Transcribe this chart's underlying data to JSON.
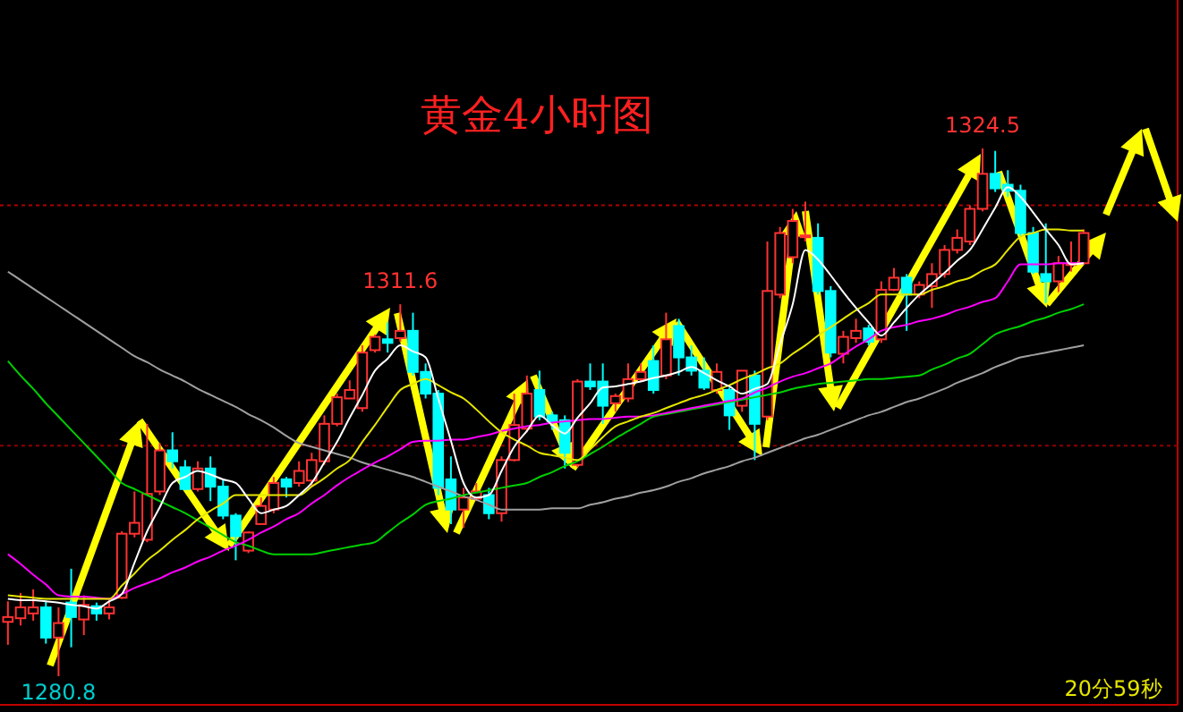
{
  "chart_data": {
    "type": "candlestick",
    "title": "黄金4小时图",
    "tick_labels": false,
    "categories": [
      null,
      null,
      null,
      null,
      null,
      null,
      null,
      null,
      null,
      null,
      null,
      null,
      null,
      null,
      null,
      null,
      null,
      null,
      null,
      null,
      null,
      null,
      null,
      null,
      null,
      null,
      null,
      null,
      null,
      null,
      null,
      null,
      null,
      null,
      null,
      null,
      null,
      null,
      null,
      null,
      null,
      null,
      null,
      null,
      null,
      null,
      null,
      null,
      null,
      null,
      null,
      null,
      null,
      null,
      null,
      null,
      null,
      null,
      null,
      null,
      null,
      null,
      null,
      null,
      null,
      null,
      null,
      null,
      null,
      null,
      null,
      null,
      null,
      null,
      null,
      null,
      null,
      null,
      null,
      null,
      null,
      null,
      null,
      null,
      null,
      null
    ],
    "ohlc": [
      [
        1285.3,
        1287.0,
        1283.4,
        1285.7
      ],
      [
        1285.6,
        1287.7,
        1285.0,
        1286.5
      ],
      [
        1286.0,
        1288.0,
        1285.4,
        1286.5
      ],
      [
        1286.5,
        1287.0,
        1283.5,
        1284.0
      ],
      [
        1284.0,
        1286.5,
        1280.8,
        1285.2
      ],
      [
        1286.9,
        1289.7,
        1283.2,
        1285.7
      ],
      [
        1285.5,
        1287.5,
        1284.2,
        1286.7
      ],
      [
        1286.6,
        1286.9,
        1285.4,
        1286.0
      ],
      [
        1286.0,
        1287.2,
        1285.5,
        1286.5
      ],
      [
        1287.3,
        1292.8,
        1287.2,
        1292.6
      ],
      [
        1292.6,
        1296.1,
        1292.3,
        1293.5
      ],
      [
        1292.1,
        1301.7,
        1291.9,
        1295.9
      ],
      [
        1296.1,
        1300.1,
        1295.8,
        1299.5
      ],
      [
        1299.5,
        1301.0,
        1298.0,
        1298.6
      ],
      [
        1298.1,
        1298.7,
        1296.2,
        1296.3
      ],
      [
        1296.3,
        1298.6,
        1296.1,
        1298.0
      ],
      [
        1298.0,
        1299.0,
        1295.3,
        1296.5
      ],
      [
        1296.5,
        1297.1,
        1293.8,
        1294.1
      ],
      [
        1294.1,
        1294.3,
        1290.4,
        1292.4
      ],
      [
        1291.2,
        1292.8,
        1291.0,
        1292.7
      ],
      [
        1293.4,
        1295.6,
        1293.4,
        1294.9
      ],
      [
        1294.6,
        1297.3,
        1294.3,
        1296.8
      ],
      [
        1297.1,
        1297.3,
        1295.6,
        1296.5
      ],
      [
        1296.8,
        1298.6,
        1296.5,
        1297.8
      ],
      [
        1297.0,
        1299.3,
        1296.5,
        1298.7
      ],
      [
        1298.6,
        1302.4,
        1298.3,
        1301.7
      ],
      [
        1301.7,
        1304.2,
        1301.5,
        1303.9
      ],
      [
        1303.8,
        1305.3,
        1303.8,
        1304.5
      ],
      [
        1303.0,
        1308.2,
        1302.7,
        1307.6
      ],
      [
        1307.8,
        1309.1,
        1307.6,
        1308.9
      ],
      [
        1308.7,
        1310.1,
        1307.6,
        1308.4
      ],
      [
        1308.8,
        1311.6,
        1308.5,
        1309.4
      ],
      [
        1309.4,
        1310.9,
        1305.7,
        1306.0
      ],
      [
        1306.0,
        1306.7,
        1303.8,
        1304.2
      ],
      [
        1304.2,
        1304.5,
        1295.8,
        1296.4
      ],
      [
        1297.1,
        1299.0,
        1293.4,
        1294.6
      ],
      [
        1294.6,
        1296.4,
        1293.1,
        1295.6
      ],
      [
        1295.5,
        1296.8,
        1295.3,
        1296.1
      ],
      [
        1295.8,
        1296.4,
        1293.8,
        1294.3
      ],
      [
        1294.3,
        1299.0,
        1293.6,
        1298.7
      ],
      [
        1298.7,
        1304.2,
        1298.6,
        1301.6
      ],
      [
        1301.3,
        1305.7,
        1301.0,
        1304.2
      ],
      [
        1304.5,
        1306.1,
        1302.0,
        1302.3
      ],
      [
        1302.4,
        1302.7,
        1301.2,
        1301.9
      ],
      [
        1302.0,
        1302.4,
        1298.0,
        1299.3
      ],
      [
        1298.3,
        1305.4,
        1298.1,
        1305.2
      ],
      [
        1305.2,
        1306.7,
        1304.5,
        1304.8
      ],
      [
        1305.2,
        1306.7,
        1301.7,
        1303.2
      ],
      [
        1303.4,
        1304.2,
        1302.7,
        1304.0
      ],
      [
        1303.8,
        1306.7,
        1303.5,
        1305.4
      ],
      [
        1305.4,
        1306.7,
        1305.2,
        1306.0
      ],
      [
        1306.9,
        1308.2,
        1304.2,
        1304.5
      ],
      [
        1305.7,
        1310.9,
        1305.4,
        1308.7
      ],
      [
        1309.8,
        1310.4,
        1305.7,
        1307.2
      ],
      [
        1307.2,
        1308.2,
        1305.7,
        1306.1
      ],
      [
        1306.1,
        1307.2,
        1304.5,
        1304.7
      ],
      [
        1304.5,
        1306.7,
        1304.2,
        1306.0
      ],
      [
        1304.5,
        1304.7,
        1301.2,
        1302.4
      ],
      [
        1303.2,
        1306.1,
        1302.7,
        1306.1
      ],
      [
        1305.7,
        1306.1,
        1298.7,
        1301.7
      ],
      [
        1302.3,
        1316.8,
        1302.0,
        1312.7
      ],
      [
        1312.4,
        1318.0,
        1312.1,
        1317.5
      ],
      [
        1315.5,
        1319.5,
        1315.0,
        1318.5
      ],
      [
        1317.2,
        1320.1,
        1316.8,
        1317.3
      ],
      [
        1317.1,
        1318.3,
        1312.4,
        1312.7
      ],
      [
        1312.7,
        1313.1,
        1307.2,
        1307.6
      ],
      [
        1307.5,
        1309.4,
        1306.7,
        1308.9
      ],
      [
        1308.8,
        1310.4,
        1308.4,
        1309.4
      ],
      [
        1309.6,
        1309.9,
        1308.2,
        1308.5
      ],
      [
        1308.7,
        1313.5,
        1308.4,
        1312.8
      ],
      [
        1312.8,
        1314.6,
        1312.7,
        1313.8
      ],
      [
        1313.8,
        1314.1,
        1309.4,
        1312.4
      ],
      [
        1312.4,
        1313.5,
        1312.1,
        1313.2
      ],
      [
        1313.1,
        1315.0,
        1311.3,
        1314.1
      ],
      [
        1314.1,
        1316.5,
        1313.8,
        1316.1
      ],
      [
        1316.1,
        1317.8,
        1315.8,
        1317.1
      ],
      [
        1316.8,
        1319.8,
        1316.5,
        1319.5
      ],
      [
        1319.5,
        1324.5,
        1319.3,
        1322.4
      ],
      [
        1322.4,
        1324.3,
        1320.9,
        1321.2
      ],
      [
        1321.5,
        1322.7,
        1320.5,
        1321.0
      ],
      [
        1321.0,
        1321.5,
        1317.2,
        1317.5
      ],
      [
        1317.5,
        1318.0,
        1314.1,
        1314.3
      ],
      [
        1314.1,
        1318.3,
        1311.7,
        1313.5
      ],
      [
        1313.5,
        1315.6,
        1312.6,
        1315.0
      ],
      [
        1314.9,
        1316.8,
        1314.3,
        1315.0
      ],
      [
        1315.0,
        1317.8,
        1314.9,
        1317.5
      ]
    ],
    "series": [
      {
        "type": "line",
        "color": "#a0a0a0",
        "values": [
          1314.3,
          1313.6,
          1312.9,
          1312.2,
          1311.5,
          1310.8,
          1310.1,
          1309.4,
          1308.7,
          1308.0,
          1307.3,
          1306.8,
          1306.2,
          1305.7,
          1305.2,
          1304.6,
          1304.1,
          1303.6,
          1303.1,
          1302.5,
          1302.0,
          1301.4,
          1300.7,
          1300.1,
          1299.8,
          1299.5,
          1299.2,
          1298.9,
          1298.5,
          1298.2,
          1297.9,
          1297.6,
          1297.3,
          1296.9,
          1296.5,
          1296.1,
          1295.7,
          1295.4,
          1295.0,
          1294.6,
          1294.6,
          1294.6,
          1294.6,
          1294.7,
          1294.7,
          1294.7,
          1295.0,
          1295.2,
          1295.5,
          1295.7,
          1296.0,
          1296.2,
          1296.5,
          1296.9,
          1297.2,
          1297.6,
          1297.9,
          1298.2,
          1298.6,
          1298.9,
          1299.3,
          1299.7,
          1300.1,
          1300.5,
          1300.8,
          1301.2,
          1301.6,
          1302.0,
          1302.4,
          1302.7,
          1303.1,
          1303.5,
          1303.8,
          1304.2,
          1304.6,
          1305.1,
          1305.5,
          1305.9,
          1306.4,
          1306.8,
          1307.2,
          1307.4,
          1307.6,
          1307.8,
          1308.0,
          1308.2
        ]
      },
      {
        "type": "line",
        "color": "#00d000",
        "values": [
          1306.9,
          1305.7,
          1304.6,
          1303.4,
          1302.3,
          1301.2,
          1300.1,
          1299.0,
          1297.9,
          1296.8,
          1296.3,
          1295.8,
          1295.3,
          1294.8,
          1294.3,
          1293.7,
          1293.1,
          1292.5,
          1291.9,
          1291.6,
          1291.2,
          1290.9,
          1290.9,
          1290.9,
          1290.9,
          1291.1,
          1291.3,
          1291.5,
          1291.7,
          1291.9,
          1292.7,
          1293.5,
          1294.2,
          1295.0,
          1295.3,
          1295.5,
          1295.8,
          1296.0,
          1296.2,
          1296.4,
          1296.6,
          1296.8,
          1297.3,
          1297.7,
          1298.2,
          1298.6,
          1299.2,
          1299.8,
          1300.5,
          1301.1,
          1301.7,
          1302.3,
          1302.5,
          1302.7,
          1302.9,
          1303.1,
          1303.3,
          1303.5,
          1303.7,
          1303.9,
          1304.1,
          1304.3,
          1304.6,
          1304.8,
          1305.0,
          1305.1,
          1305.2,
          1305.3,
          1305.4,
          1305.4,
          1305.5,
          1305.6,
          1305.7,
          1306.2,
          1306.6,
          1307.1,
          1307.5,
          1308.3,
          1309.1,
          1309.5,
          1309.8,
          1310.2,
          1310.5,
          1310.9,
          1311.2,
          1311.6
        ]
      },
      {
        "type": "line",
        "color": "#ff00ff",
        "values": [
          1290.9,
          1290.1,
          1289.2,
          1288.4,
          1287.5,
          1287.4,
          1287.4,
          1287.3,
          1287.2,
          1287.6,
          1288.1,
          1288.5,
          1288.9,
          1289.4,
          1289.8,
          1290.3,
          1290.7,
          1291.2,
          1291.6,
          1292.1,
          1292.7,
          1293.2,
          1293.8,
          1294.3,
          1295.1,
          1295.8,
          1296.6,
          1297.3,
          1297.9,
          1298.5,
          1299.0,
          1299.6,
          1300.2,
          1300.3,
          1300.3,
          1300.4,
          1300.4,
          1300.6,
          1300.8,
          1301.1,
          1301.3,
          1301.5,
          1301.6,
          1301.8,
          1301.9,
          1302.0,
          1302.1,
          1302.1,
          1302.2,
          1302.3,
          1302.3,
          1302.4,
          1302.6,
          1302.8,
          1303.0,
          1303.2,
          1303.4,
          1303.6,
          1303.8,
          1304.3,
          1304.7,
          1305.2,
          1305.6,
          1305.9,
          1306.3,
          1306.7,
          1307.4,
          1308.1,
          1308.7,
          1309.4,
          1309.7,
          1309.9,
          1310.2,
          1310.4,
          1310.7,
          1311.1,
          1311.4,
          1311.8,
          1312.1,
          1313.5,
          1314.9,
          1314.9,
          1314.9,
          1315.0,
          1315.0,
          1315.0
        ]
      },
      {
        "type": "line",
        "color": "#e6e600",
        "values": [
          1287.5,
          1287.4,
          1287.3,
          1287.2,
          1287.2,
          1287.2,
          1287.2,
          1287.2,
          1287.2,
          1288.3,
          1289.3,
          1290.4,
          1291.2,
          1292.1,
          1292.9,
          1293.8,
          1294.5,
          1295.1,
          1295.8,
          1295.8,
          1295.8,
          1295.8,
          1295.8,
          1295.8,
          1296.5,
          1297.2,
          1298.0,
          1298.7,
          1300.2,
          1301.6,
          1303.1,
          1304.5,
          1305.0,
          1305.4,
          1304.9,
          1304.3,
          1303.8,
          1302.9,
          1301.9,
          1301.0,
          1300.4,
          1299.9,
          1299.3,
          1299.1,
          1298.9,
          1298.7,
          1299.6,
          1300.6,
          1301.5,
          1301.9,
          1302.3,
          1302.6,
          1303.0,
          1303.4,
          1303.8,
          1304.1,
          1304.5,
          1304.9,
          1305.4,
          1305.8,
          1306.3,
          1306.7,
          1307.5,
          1308.2,
          1309.0,
          1309.7,
          1310.4,
          1311.1,
          1311.7,
          1312.4,
          1312.4,
          1312.4,
          1312.4,
          1312.8,
          1313.1,
          1313.5,
          1313.8,
          1314.4,
          1314.9,
          1316.1,
          1317.2,
          1317.5,
          1317.8,
          1317.8,
          1317.7,
          1317.7
        ]
      },
      {
        "type": "line",
        "color": "#ffffff",
        "values": [
          1287.2,
          1287.1,
          1287.1,
          1287.0,
          1286.9,
          1286.7,
          1286.6,
          1286.4,
          1287.0,
          1287.6,
          1290.2,
          1292.8,
          1294.8,
          1296.8,
          1297.3,
          1297.8,
          1297.5,
          1297.1,
          1296.8,
          1295.5,
          1294.3,
          1294.6,
          1294.9,
          1295.8,
          1296.8,
          1298.5,
          1300.2,
          1302.2,
          1304.1,
          1306.1,
          1307.1,
          1308.2,
          1307.7,
          1307.2,
          1303.8,
          1300.3,
          1296.8,
          1295.6,
          1295.8,
          1297.8,
          1299.8,
          1301.1,
          1302.4,
          1301.6,
          1300.9,
          1302.2,
          1303.4,
          1304.7,
          1304.8,
          1305.0,
          1305.2,
          1305.5,
          1305.7,
          1306.0,
          1306.4,
          1305.9,
          1305.3,
          1304.8,
          1304.2,
          1304.6,
          1305.0,
          1308.3,
          1311.6,
          1316.1,
          1315.3,
          1314.0,
          1312.6,
          1311.3,
          1310.1,
          1309.0,
          1310.1,
          1311.3,
          1312.4,
          1313.3,
          1314.2,
          1315.2,
          1316.1,
          1317.8,
          1319.6,
          1321.3,
          1320.5,
          1319.2,
          1317.8,
          1316.5,
          1314.9,
          1315.0
        ]
      }
    ],
    "ref_lines": [
      {
        "axis": "y",
        "value": 1319.8,
        "color": "#b00000",
        "line_style": "dotted"
      },
      {
        "axis": "y",
        "value": 1299.9,
        "color": "#900000",
        "line_style": "dotted"
      }
    ],
    "annotations": [
      {
        "text": "1311.6",
        "y": 1311.6
      },
      {
        "text": "1324.5",
        "y": 1324.5
      },
      {
        "text": "1280.8",
        "y": 1280.8
      },
      "20分59秒"
    ]
  }
}
